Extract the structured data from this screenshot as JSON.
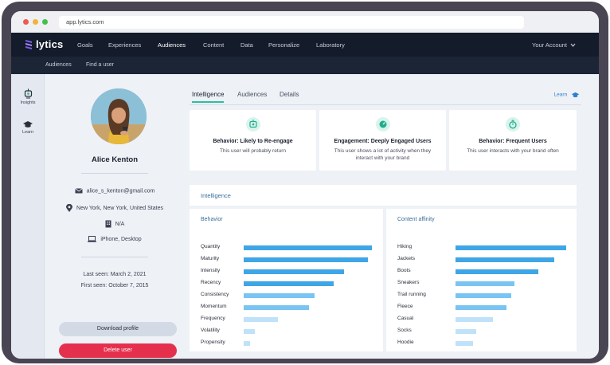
{
  "browser": {
    "url": "app.lytics.com"
  },
  "brand": {
    "name": "lytics"
  },
  "topnav": {
    "items": [
      "Goals",
      "Experiences",
      "Audiences",
      "Content",
      "Data",
      "Personalize",
      "Laboratory"
    ],
    "active": "Audiences",
    "account": "Your Account"
  },
  "subnav": {
    "items": [
      "Audiences",
      "Find a user"
    ]
  },
  "rail": {
    "items": [
      {
        "label": "Insights",
        "icon": "insights-icon"
      },
      {
        "label": "Learn",
        "icon": "graduation-cap-icon"
      }
    ]
  },
  "profile": {
    "name": "Alice Kenton",
    "email": "alice_s_kenton@gmail.com",
    "location": "New York, New York, United States",
    "company": "N/A",
    "devices": "iPhone, Desktop",
    "last_seen": "Last seen: March 2, 2021",
    "first_seen": "First seen: October 7, 2015",
    "download_label": "Download profile",
    "delete_label": "Delete user"
  },
  "tabs": {
    "items": [
      "Intelligence",
      "Audiences",
      "Details"
    ],
    "active": "Intelligence",
    "learn_label": "Learn"
  },
  "segments": [
    {
      "title": "Behavior: Likely to Re-engage",
      "desc": "This user will probably return"
    },
    {
      "title": "Engagement: Deeply Engaged Users",
      "desc": "This user shows a lot of activity when they interact with your brand"
    },
    {
      "title": "Behavior: Frequent Users",
      "desc": "This user interacts with your brand often"
    }
  ],
  "intelligence": {
    "title": "Intelligence"
  },
  "behavior": {
    "title": "Behavior",
    "rows": [
      {
        "label": "Quantity",
        "value": 1.0,
        "shade": "#3ea6e6"
      },
      {
        "label": "Maturity",
        "value": 0.97,
        "shade": "#3ea6e6"
      },
      {
        "label": "Intensity",
        "value": 0.78,
        "shade": "#3ea6e6"
      },
      {
        "label": "Recency",
        "value": 0.7,
        "shade": "#3ea6e6"
      },
      {
        "label": "Consistency",
        "value": 0.55,
        "shade": "#79c4f2"
      },
      {
        "label": "Momentum",
        "value": 0.51,
        "shade": "#79c4f2"
      },
      {
        "label": "Frequency",
        "value": 0.27,
        "shade": "#bfe2f8"
      },
      {
        "label": "Volatility",
        "value": 0.09,
        "shade": "#bfe2f8"
      },
      {
        "label": "Propensity",
        "value": 0.05,
        "shade": "#bfe2f8"
      }
    ]
  },
  "content_affinity": {
    "title": "Content affinity",
    "rows": [
      {
        "label": "Hiking",
        "value": 1.0,
        "shade": "#3ea6e6"
      },
      {
        "label": "Jackets",
        "value": 0.89,
        "shade": "#3ea6e6"
      },
      {
        "label": "Boots",
        "value": 0.75,
        "shade": "#3ea6e6"
      },
      {
        "label": "Sneakers",
        "value": 0.53,
        "shade": "#79c4f2"
      },
      {
        "label": "Trail running",
        "value": 0.5,
        "shade": "#79c4f2"
      },
      {
        "label": "Fleece",
        "value": 0.46,
        "shade": "#79c4f2"
      },
      {
        "label": "Casual",
        "value": 0.34,
        "shade": "#bfe2f8"
      },
      {
        "label": "Socks",
        "value": 0.19,
        "shade": "#bfe2f8"
      },
      {
        "label": "Hoodie",
        "value": 0.16,
        "shade": "#bfe2f8"
      }
    ]
  },
  "colors": {
    "accent": "#2ac0a0",
    "danger": "#e5304d",
    "nav": "#141b2a",
    "bar": "#3ea6e6"
  }
}
